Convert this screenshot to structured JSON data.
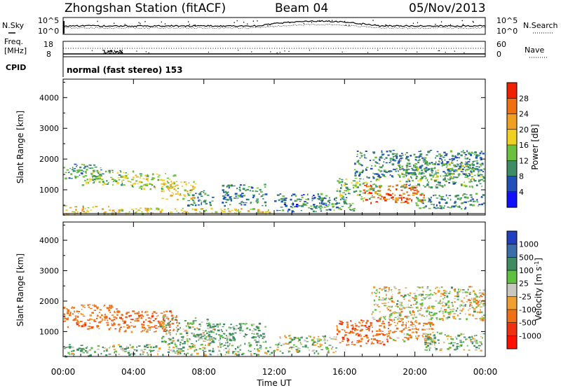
{
  "header": {
    "station": "Zhongshan Station (fitACF)",
    "beam": "Beam 04",
    "date": "05/Nov/2013",
    "mode": "normal (fast stereo) 153"
  },
  "side_labels": {
    "nsky": "N.Sky",
    "freq_top": "Freq.",
    "freq_unit": "[MHz]",
    "cpid": "CPID",
    "nsearch": "N.Search",
    "nave": "Nave"
  },
  "strip_ticks": {
    "noise_top": "10^5",
    "noise_bottom": "10^0",
    "freq_top": "18",
    "freq_bottom": "8",
    "nave_top": "60",
    "nave_bottom": "0"
  },
  "x_axis": {
    "label": "Time UT",
    "ticks": [
      "00:00",
      "04:00",
      "08:00",
      "12:00",
      "16:00",
      "20:00",
      "00:00"
    ]
  },
  "power_colorbar": {
    "title": "Power [dB]",
    "ticks": [
      "4",
      "8",
      "12",
      "16",
      "20",
      "24",
      "28"
    ],
    "colors": [
      "#1010ff",
      "#2050b8",
      "#3c8c64",
      "#6cc040",
      "#f0d020",
      "#f0a020",
      "#f07010",
      "#f02000"
    ]
  },
  "velocity_colorbar": {
    "title": "Velocity [m s",
    "title_sup": "-1",
    "title_end": "]",
    "ticks": [
      "1000",
      "500",
      "100",
      "25",
      "-25",
      "-100",
      "-500",
      "-1000"
    ],
    "colors": [
      "#2040c0",
      "#3a6ea8",
      "#3f8c62",
      "#60c040",
      "#c8c8c0",
      "#f0a030",
      "#f07018",
      "#f03010",
      "#ff1000"
    ]
  },
  "chart_data": [
    {
      "type": "heatmap",
      "title": "Power",
      "xlabel": "Time UT",
      "ylabel": "Slant Range [km]",
      "xlim": [
        0,
        24
      ],
      "ylim": [
        180,
        4600
      ],
      "yticks": [
        1000,
        2000,
        3000,
        4000
      ],
      "colorbar_range_db": [
        0,
        32
      ],
      "scatter_regions": [
        {
          "t": [
            0.0,
            2.2
          ],
          "r": [
            1350,
            1850
          ],
          "v": 11
        },
        {
          "t": [
            1.0,
            4.0
          ],
          "r": [
            1150,
            1650
          ],
          "v": 14
        },
        {
          "t": [
            3.8,
            6.5
          ],
          "r": [
            1050,
            1550
          ],
          "v": 16
        },
        {
          "t": [
            5.5,
            7.5
          ],
          "r": [
            700,
            1300
          ],
          "v": 19
        },
        {
          "t": [
            7.0,
            8.5
          ],
          "r": [
            500,
            1000
          ],
          "v": 9
        },
        {
          "t": [
            0.0,
            3.0
          ],
          "r": [
            200,
            500
          ],
          "v": 20
        },
        {
          "t": [
            3.0,
            12.0
          ],
          "r": [
            250,
            420
          ],
          "v": 18
        },
        {
          "t": [
            9.0,
            11.5
          ],
          "r": [
            500,
            1200
          ],
          "v": 9
        },
        {
          "t": [
            12.0,
            15.0
          ],
          "r": [
            300,
            900
          ],
          "v": 8
        },
        {
          "t": [
            14.5,
            16.5
          ],
          "r": [
            350,
            800
          ],
          "v": 11
        },
        {
          "t": [
            15.5,
            18.0
          ],
          "r": [
            700,
            1400
          ],
          "v": 13
        },
        {
          "t": [
            17.0,
            20.5
          ],
          "r": [
            600,
            1200
          ],
          "v": 26
        },
        {
          "t": [
            16.5,
            23.9
          ],
          "r": [
            1400,
            2300
          ],
          "v": 9
        },
        {
          "t": [
            19.0,
            23.9
          ],
          "r": [
            1100,
            1900
          ],
          "v": 12
        },
        {
          "t": [
            20.0,
            23.9
          ],
          "r": [
            400,
            900
          ],
          "v": 10
        }
      ]
    },
    {
      "type": "heatmap",
      "title": "Velocity",
      "xlabel": "Time UT",
      "ylabel": "Slant Range [km]",
      "xlim": [
        0,
        24
      ],
      "ylim": [
        180,
        4600
      ],
      "yticks": [
        1000,
        2000,
        3000,
        4000
      ],
      "colorbar_range_ms": [
        -1000,
        1000
      ],
      "scatter_regions": [
        {
          "t": [
            0.0,
            3.0
          ],
          "r": [
            1100,
            1900
          ],
          "v": -300
        },
        {
          "t": [
            3.0,
            6.5
          ],
          "r": [
            1000,
            1700
          ],
          "v": -350
        },
        {
          "t": [
            5.5,
            8.5
          ],
          "r": [
            600,
            1500
          ],
          "v": 80
        },
        {
          "t": [
            0.0,
            2.5
          ],
          "r": [
            200,
            600
          ],
          "v": 150
        },
        {
          "t": [
            2.5,
            12.0
          ],
          "r": [
            250,
            600
          ],
          "v": 60
        },
        {
          "t": [
            8.0,
            11.5
          ],
          "r": [
            600,
            1300
          ],
          "v": 200
        },
        {
          "t": [
            12.0,
            15.5
          ],
          "r": [
            300,
            900
          ],
          "v": 40
        },
        {
          "t": [
            15.5,
            18.5
          ],
          "r": [
            550,
            1400
          ],
          "v": -400
        },
        {
          "t": [
            18.5,
            21.0
          ],
          "r": [
            700,
            1400
          ],
          "v": -150
        },
        {
          "t": [
            17.5,
            23.9
          ],
          "r": [
            1400,
            2500
          ],
          "v": 0
        },
        {
          "t": [
            20.5,
            23.9
          ],
          "r": [
            400,
            1000
          ],
          "v": 90
        },
        {
          "t": [
            23.0,
            23.9
          ],
          "r": [
            1900,
            2300
          ],
          "v": -200
        }
      ]
    }
  ]
}
